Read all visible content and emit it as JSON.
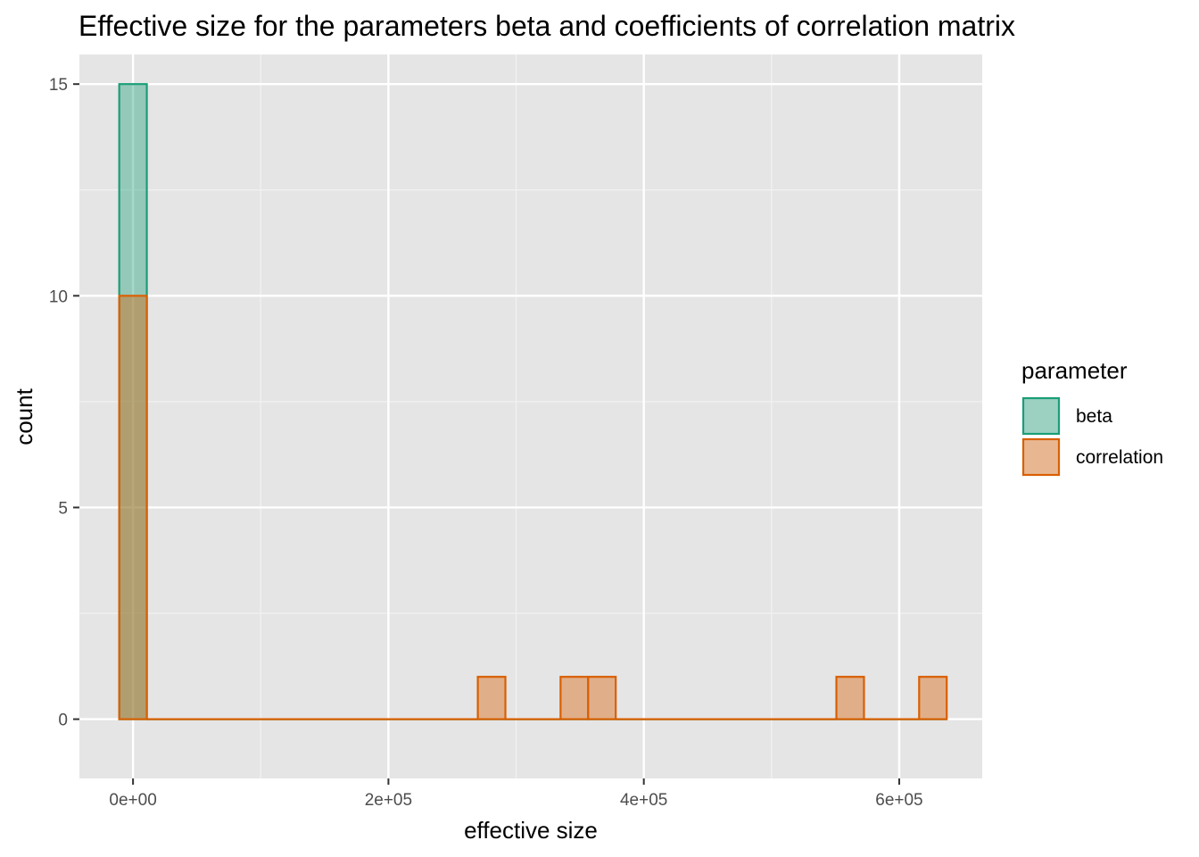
{
  "chart_data": {
    "type": "histogram",
    "title": "Effective size for the parameters beta and coefficients of correlation matrix",
    "xlabel": "effective size",
    "ylabel": "count",
    "xlim": [
      -42000,
      665000
    ],
    "ylim": [
      -1.4,
      15.7
    ],
    "x_ticks": [
      0,
      200000,
      400000,
      600000
    ],
    "x_tick_labels": [
      "0e+00",
      "2e+05",
      "4e+05",
      "6e+05"
    ],
    "y_ticks": [
      0,
      5,
      10,
      15
    ],
    "y_tick_labels": [
      "0",
      "5",
      "10",
      "15"
    ],
    "bin_width": 21600,
    "bin_starts": [
      -10800,
      10800,
      32400,
      54000,
      75600,
      97200,
      118800,
      140400,
      162000,
      183600,
      205200,
      226800,
      248400,
      270000,
      291600,
      313200,
      334800,
      356400,
      378000,
      399600,
      421200,
      442800,
      464400,
      486000,
      507600,
      529200,
      550800,
      572400,
      594000,
      615600
    ],
    "series": [
      {
        "name": "beta",
        "color": "#1b9e77",
        "counts": [
          15,
          0,
          0,
          0,
          0,
          0,
          0,
          0,
          0,
          0,
          0,
          0,
          0,
          0,
          0,
          0,
          0,
          0,
          0,
          0,
          0,
          0,
          0,
          0,
          0,
          0,
          0,
          0,
          0,
          0
        ]
      },
      {
        "name": "correlation",
        "color": "#d95f02",
        "counts": [
          10,
          0,
          0,
          0,
          0,
          0,
          0,
          0,
          0,
          0,
          0,
          0,
          0,
          1,
          0,
          0,
          1,
          1,
          0,
          0,
          0,
          0,
          0,
          0,
          0,
          0,
          1,
          0,
          0,
          1
        ]
      }
    ],
    "grid": true,
    "legend": {
      "title": "parameter",
      "position": "right",
      "items": [
        "beta",
        "correlation"
      ]
    }
  }
}
